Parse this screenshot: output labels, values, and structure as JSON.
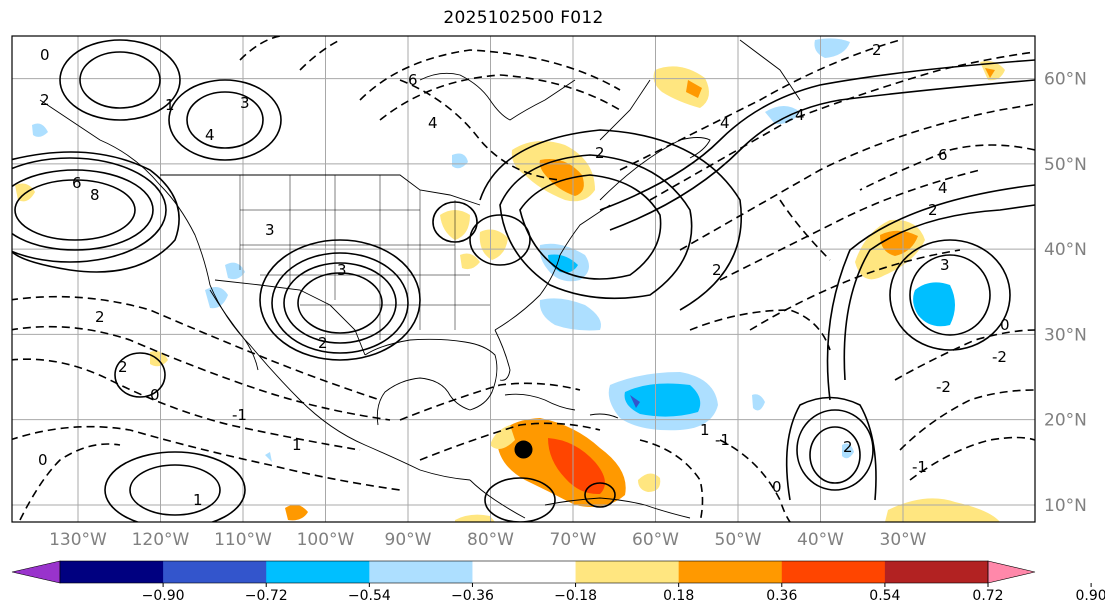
{
  "title": "2025102500 F012",
  "map": {
    "lon_range": [
      -138,
      -14
    ],
    "lat_range": [
      8,
      65
    ],
    "grid": true,
    "lon_ticks": [
      {
        "value": -130,
        "label": "130°W"
      },
      {
        "value": -120,
        "label": "120°W"
      },
      {
        "value": -110,
        "label": "110°W"
      },
      {
        "value": -100,
        "label": "100°W"
      },
      {
        "value": -90,
        "label": "90°W"
      },
      {
        "value": -80,
        "label": "80°W"
      },
      {
        "value": -70,
        "label": "70°W"
      },
      {
        "value": -60,
        "label": "60°W"
      },
      {
        "value": -50,
        "label": "50°W"
      },
      {
        "value": -40,
        "label": "40°W"
      },
      {
        "value": -30,
        "label": "30°W"
      }
    ],
    "lat_ticks": [
      {
        "value": 10,
        "label": "10°N"
      },
      {
        "value": 20,
        "label": "20°N"
      },
      {
        "value": 30,
        "label": "30°N"
      },
      {
        "value": 40,
        "label": "40°N"
      },
      {
        "value": 50,
        "label": "50°N"
      },
      {
        "value": 60,
        "label": "60°N"
      }
    ],
    "tick_color": "#808080",
    "storm_marker": {
      "lon": -76,
      "lat": 16.5,
      "color": "#000000"
    }
  },
  "colorbar": {
    "ticks": [
      "−0.90",
      "−0.72",
      "−0.54",
      "−0.36",
      "−0.18",
      "0.18",
      "0.36",
      "0.54",
      "0.72",
      "0.90"
    ],
    "colors": [
      "#9933cc",
      "#000080",
      "#3355cc",
      "#00bfff",
      "#addfff",
      "#ffffff",
      "#ffe680",
      "#ff9900",
      "#ff4500",
      "#b22222",
      "#ff88aa"
    ]
  },
  "contour_labels": [
    "0",
    "2",
    "4",
    "6",
    "8",
    "3",
    "1",
    "2",
    "6",
    "4",
    "2",
    "3",
    "4",
    "6",
    "4",
    "2",
    "3",
    "2",
    "1",
    "2",
    "3",
    "4",
    "-1",
    "-2",
    "2",
    "0",
    "0",
    "-1",
    "-1",
    "0",
    "-2",
    "1",
    "2",
    "0",
    "2",
    "1"
  ]
}
